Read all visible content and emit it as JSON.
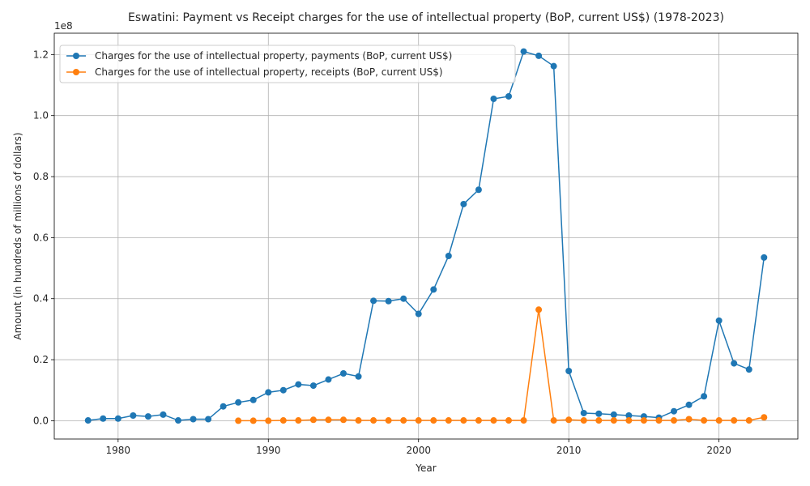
{
  "chart_data": {
    "type": "line",
    "title": "Eswatini: Payment vs Receipt charges for the use of intellectual property  (BoP, current US$) (1978-2023)",
    "xlabel": "Year",
    "ylabel": "Amount (in hundreds of millions of dollars)",
    "y_offset_text": "1e8",
    "xlim": [
      1975.75,
      2025.25
    ],
    "ylim": [
      -0.06,
      1.27
    ],
    "x_ticks": [
      1980,
      1990,
      2000,
      2010,
      2020
    ],
    "x_tick_labels": [
      "1980",
      "1990",
      "2000",
      "2010",
      "2020"
    ],
    "y_ticks": [
      0.0,
      0.2,
      0.4,
      0.6,
      0.8,
      1.0,
      1.2
    ],
    "y_tick_labels": [
      "0.0",
      "0.2",
      "0.4",
      "0.6",
      "0.8",
      "1.0",
      "1.2"
    ],
    "grid": true,
    "legend_position": "top-left",
    "series": [
      {
        "name": "Charges for the use of intellectual property, payments (BoP, current US$)",
        "color": "#1f77b4",
        "x": [
          1978,
          1979,
          1980,
          1981,
          1982,
          1983,
          1984,
          1985,
          1986,
          1987,
          1988,
          1989,
          1990,
          1991,
          1992,
          1993,
          1994,
          1995,
          1996,
          1997,
          1998,
          1999,
          2000,
          2001,
          2002,
          2003,
          2004,
          2005,
          2006,
          2007,
          2008,
          2009,
          2010,
          2011,
          2012,
          2013,
          2014,
          2015,
          2016,
          2017,
          2018,
          2019,
          2020,
          2021,
          2022,
          2023
        ],
        "y": [
          0.001,
          0.007,
          0.007,
          0.017,
          0.014,
          0.02,
          0.001,
          0.005,
          0.005,
          0.047,
          0.06,
          0.068,
          0.093,
          0.1,
          0.119,
          0.115,
          0.135,
          0.155,
          0.145,
          0.393,
          0.392,
          0.4,
          0.35,
          0.43,
          0.54,
          0.71,
          0.757,
          1.055,
          1.063,
          1.21,
          1.196,
          1.162,
          0.163,
          0.025,
          0.023,
          0.02,
          0.017,
          0.014,
          0.01,
          0.031,
          0.052,
          0.08,
          0.328,
          0.188,
          0.168,
          0.535
        ]
      },
      {
        "name": "Charges for the use of intellectual property, receipts (BoP, current US$)",
        "color": "#ff7f0e",
        "x": [
          1988,
          1989,
          1990,
          1991,
          1992,
          1993,
          1994,
          1995,
          1996,
          1997,
          1998,
          1999,
          2000,
          2001,
          2002,
          2003,
          2004,
          2005,
          2006,
          2007,
          2008,
          2009,
          2010,
          2011,
          2012,
          2013,
          2014,
          2015,
          2016,
          2017,
          2018,
          2019,
          2020,
          2021,
          2022,
          2023
        ],
        "y": [
          0.0,
          0.0,
          0.0,
          0.001,
          0.001,
          0.003,
          0.003,
          0.003,
          0.001,
          0.001,
          0.001,
          0.001,
          0.001,
          0.001,
          0.001,
          0.001,
          0.001,
          0.001,
          0.001,
          0.001,
          0.364,
          0.001,
          0.003,
          0.001,
          0.001,
          0.001,
          0.001,
          0.001,
          0.001,
          0.001,
          0.005,
          0.001,
          0.001,
          0.001,
          0.001,
          0.011
        ]
      }
    ]
  }
}
